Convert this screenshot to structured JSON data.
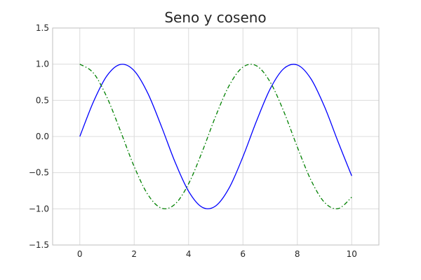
{
  "chart_data": {
    "type": "line",
    "title": "Seno y coseno",
    "xlabel": "",
    "ylabel": "",
    "xlim": [
      -1,
      11
    ],
    "ylim": [
      -1.5,
      1.5
    ],
    "grid": true,
    "x_ticks": [
      0,
      2,
      4,
      6,
      8,
      10
    ],
    "x_tick_labels": [
      "0",
      "2",
      "4",
      "6",
      "8",
      "10"
    ],
    "y_ticks": [
      -1.5,
      -1.0,
      -0.5,
      0.0,
      0.5,
      1.0,
      1.5
    ],
    "y_tick_labels": [
      "−1.5",
      "−1.0",
      "−0.5",
      "0.0",
      "0.5",
      "1.0",
      "1.5"
    ],
    "x": [
      0,
      0.5,
      1,
      1.5,
      2,
      2.5,
      3,
      3.5,
      4,
      4.5,
      5,
      5.5,
      6,
      6.5,
      7,
      7.5,
      8,
      8.5,
      9,
      9.5,
      10
    ],
    "series": [
      {
        "color": "#0000ff",
        "line_style": "solid",
        "values": [
          0,
          0.479,
          0.841,
          0.997,
          0.909,
          0.598,
          0.141,
          -0.351,
          -0.757,
          -0.978,
          -0.959,
          -0.706,
          -0.279,
          0.215,
          0.657,
          0.938,
          0.989,
          0.798,
          0.412,
          -0.075,
          -0.544
        ]
      },
      {
        "color": "#008000",
        "line_style": "dash-dot",
        "values": [
          1,
          0.878,
          0.54,
          0.071,
          -0.416,
          -0.801,
          -0.99,
          -0.936,
          -0.654,
          -0.211,
          0.284,
          0.709,
          0.96,
          0.977,
          0.754,
          0.347,
          -0.146,
          -0.602,
          -0.911,
          -0.997,
          -0.839
        ]
      }
    ]
  }
}
